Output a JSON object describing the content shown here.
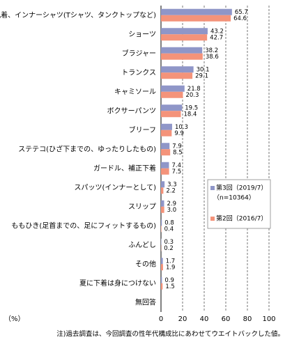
{
  "chart_data": {
    "type": "bar",
    "orientation": "horizontal",
    "categories": [
      "肌着、インナーシャツ(Tシャツ、タンクトップなど)",
      "ショーツ",
      "ブラジャー",
      "トランクス",
      "キャミソール",
      "ボクサーパンツ",
      "ブリーフ",
      "ステテコ(ひざ下までの、ゆったりしたもの)",
      "ガードル、補正下着",
      "スパッツ(インナーとして)",
      "スリップ",
      "ももひき(足首までの、足にフィットするもの)",
      "ふんどし",
      "その他",
      "夏に下着は身につけない",
      "無回答"
    ],
    "series": [
      {
        "name": "第3回（2019/7）",
        "color": "#8f96c8",
        "values": [
          65.7,
          43.2,
          38.2,
          30.1,
          21.8,
          19.5,
          10.3,
          7.9,
          7.4,
          3.3,
          2.9,
          0.8,
          0.3,
          1.7,
          0.9,
          null
        ],
        "value_labels": [
          "65.7",
          "43.2",
          "38.2",
          "30.1",
          "21.8",
          "19.5",
          "10.3",
          "7.9",
          "7.4",
          "3.3",
          "2.9",
          "0.8",
          "0.3",
          "1.7",
          "0.9",
          null
        ]
      },
      {
        "name": "第2回（2016/7）",
        "color": "#f4937a",
        "values": [
          64.6,
          42.7,
          38.6,
          29.1,
          20.3,
          18.4,
          9.9,
          8.5,
          7.5,
          2.2,
          3.0,
          0.4,
          0.2,
          1.9,
          1.5,
          null
        ],
        "value_labels": [
          "64.6",
          "42.7",
          "38.6",
          "29.1",
          "20.3",
          "18.4",
          "9.9",
          "8.5",
          "7.5",
          "2.2",
          "3.0",
          "0.4",
          "0.2",
          "1.9",
          "1.5",
          null
        ]
      }
    ],
    "legend_note": "（n=10364）",
    "xlabel": "（%）",
    "xlim": [
      0,
      100
    ],
    "xticks": [
      0,
      20,
      40,
      60,
      80,
      100
    ],
    "grid": true,
    "footnote": "注)過去調査は、今回調査の性年代構成比にあわせてウエイトバックした値。"
  }
}
